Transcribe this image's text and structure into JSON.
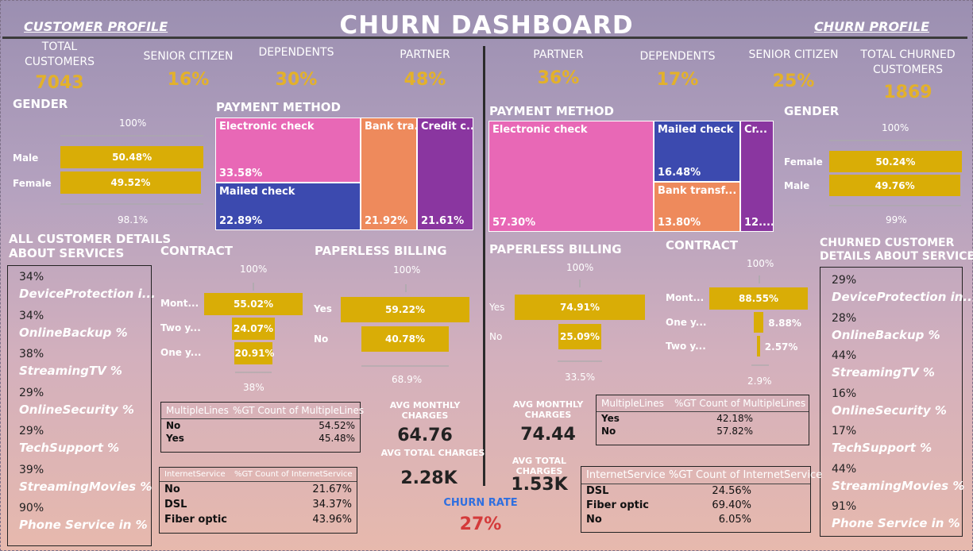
{
  "title": "CHURN DASHBOARD",
  "left_profile": "CUSTOMER   PROFILE",
  "right_profile": "CHURN PROFILE",
  "left_kpis": [
    {
      "label": "TOTAL\nCUSTOMERS",
      "value": "7043"
    },
    {
      "label": "SENIOR CITIZEN",
      "value": "16%"
    },
    {
      "label": "DEPENDENTS",
      "value": "30%"
    },
    {
      "label": "PARTNER",
      "value": "48%"
    }
  ],
  "right_kpis": [
    {
      "label": "PARTNER",
      "value": "36%"
    },
    {
      "label": "DEPENDENTS",
      "value": "17%"
    },
    {
      "label": "SENIOR CITIZEN",
      "value": "25%"
    },
    {
      "label": "TOTAL CHURNED\nCUSTOMERS",
      "value": "1869"
    }
  ],
  "colors": {
    "bar": "#d9ad06",
    "kpi": "#e3b12a",
    "electronic": "#e868b6",
    "mailed": "#3c4aaf",
    "bank": "#ee8a5c",
    "credit": "#8a36a0",
    "churn_rate": "#d43a3a",
    "churn_label": "#2f6fe0"
  },
  "chart_data": [
    {
      "type": "bar",
      "id": "left_gender",
      "title": "GENDER",
      "top_label": "100%",
      "bottom_label": "98.1%",
      "categories": [
        "Male",
        "Female"
      ],
      "values": [
        50.48,
        49.52
      ],
      "labels": [
        "50.48%",
        "49.52%"
      ]
    },
    {
      "type": "bar",
      "id": "right_gender",
      "title": "GENDER",
      "top_label": "100%",
      "bottom_label": "99%",
      "categories": [
        "Female",
        "Male"
      ],
      "values": [
        50.24,
        49.76
      ],
      "labels": [
        "50.24%",
        "49.76%"
      ]
    },
    {
      "type": "treemap",
      "id": "left_payment",
      "title": "PAYMENT METHOD",
      "categories": [
        "Electronic check",
        "Mailed check",
        "Bank tra...",
        "Credit c..."
      ],
      "values": [
        33.58,
        22.89,
        21.92,
        21.61
      ],
      "labels": [
        "33.58%",
        "22.89%",
        "21.92%",
        "21.61%"
      ]
    },
    {
      "type": "treemap",
      "id": "right_payment",
      "title": "PAYMENT METHOD",
      "categories": [
        "Electronic check",
        "Mailed check",
        "Bank transf...",
        "Cr..."
      ],
      "values": [
        57.3,
        16.48,
        13.8,
        12.4
      ],
      "labels": [
        "57.30%",
        "16.48%",
        "13.80%",
        "12...."
      ]
    },
    {
      "type": "bar",
      "id": "left_contract",
      "title": "CONTRACT",
      "top_label": "100%",
      "bottom_label": "38%",
      "categories": [
        "Mont...",
        "Two y...",
        "One y..."
      ],
      "values": [
        55.02,
        24.07,
        20.91
      ],
      "labels": [
        "55.02%",
        "24.07%",
        "20.91%"
      ]
    },
    {
      "type": "bar",
      "id": "left_paperless",
      "title": "PAPERLESS BILLING",
      "top_label": "100%",
      "bottom_label": "68.9%",
      "categories": [
        "Yes",
        "No"
      ],
      "values": [
        59.22,
        40.78
      ],
      "labels": [
        "59.22%",
        "40.78%"
      ]
    },
    {
      "type": "bar",
      "id": "right_paperless",
      "title": "PAPERLESS BILLING",
      "top_label": "100%",
      "bottom_label": "33.5%",
      "categories": [
        "Yes",
        "No"
      ],
      "values": [
        74.91,
        25.09
      ],
      "labels": [
        "74.91%",
        "25.09%"
      ]
    },
    {
      "type": "bar",
      "id": "right_contract",
      "title": "CONTRACT",
      "top_label": "100%",
      "bottom_label": "2.9%",
      "categories": [
        "Mont...",
        "One y...",
        "Two y..."
      ],
      "values": [
        88.55,
        8.88,
        2.57
      ],
      "labels": [
        "88.55%",
        "8.88%",
        "2.57%"
      ]
    }
  ],
  "left_services": {
    "title": "ALL CUSTOMER DETAILS\nABOUT SERVICES",
    "items": [
      {
        "pct": "34%",
        "name": "DeviceProtection i..."
      },
      {
        "pct": "34%",
        "name": "OnlineBackup %"
      },
      {
        "pct": "38%",
        "name": "StreamingTV %"
      },
      {
        "pct": "29%",
        "name": "OnlineSecurity %"
      },
      {
        "pct": "29%",
        "name": "TechSupport %"
      },
      {
        "pct": "39%",
        "name": "StreamingMovies %"
      },
      {
        "pct": "90%",
        "name": "Phone Service in %"
      }
    ]
  },
  "right_services": {
    "title": "CHURNED CUSTOMER\nDETAILS ABOUT SERVICES",
    "items": [
      {
        "pct": "29%",
        "name": "DeviceProtection in..."
      },
      {
        "pct": "28%",
        "name": "OnlineBackup %"
      },
      {
        "pct": "44%",
        "name": "StreamingTV %"
      },
      {
        "pct": "16%",
        "name": "OnlineSecurity %"
      },
      {
        "pct": "17%",
        "name": "TechSupport %"
      },
      {
        "pct": "44%",
        "name": "StreamingMovies %"
      },
      {
        "pct": "91%",
        "name": "Phone Service in %"
      }
    ]
  },
  "left_multiple": {
    "h1": "MultipleLines",
    "h2": "%GT Count of MultipleLines",
    "rows": [
      [
        "No",
        "54.52%"
      ],
      [
        "Yes",
        "45.48%"
      ]
    ]
  },
  "left_internet": {
    "h1": "InternetService",
    "h2": "%GT Count of InternetService",
    "rows": [
      [
        "No",
        "21.67%"
      ],
      [
        "DSL",
        "34.37%"
      ],
      [
        "Fiber optic",
        "43.96%"
      ]
    ]
  },
  "right_multiple": {
    "h1": "MultipleLines",
    "h2": "%GT Count of MultipleLines",
    "rows": [
      [
        "Yes",
        "42.18%"
      ],
      [
        "No",
        "57.82%"
      ]
    ]
  },
  "right_internet": {
    "h1": "InternetService",
    "h2": "%GT Count of InternetService",
    "rows": [
      [
        "DSL",
        "24.56%"
      ],
      [
        "Fiber optic",
        "69.40%"
      ],
      [
        "No",
        "6.05%"
      ]
    ]
  },
  "left_avg": {
    "monthly_label": "AVG MONTHLY\nCHARGES",
    "monthly": "64.76",
    "total_label": "AVG TOTAL CHARGES",
    "total": "2.28K"
  },
  "right_avg": {
    "monthly_label": "AVG MONTHLY\nCHARGES",
    "monthly": "74.44",
    "total_label": "AVG TOTAL CHARGES",
    "total": "1.53K"
  },
  "churn": {
    "label": "CHURN RATE",
    "value": "27%"
  }
}
